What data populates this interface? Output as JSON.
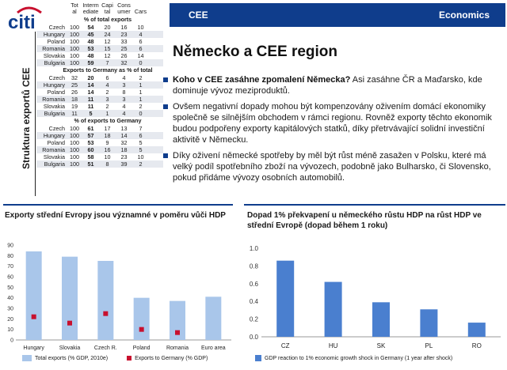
{
  "header": {
    "logo_text": "citi",
    "section": "CEE",
    "department": "Economics"
  },
  "sidebar_label": "Struktura exportů CEE",
  "table": {
    "columns": [
      "",
      "Tot al",
      "Interm ediate",
      "Capi tal",
      "Cons umer",
      "Cars"
    ],
    "col_line1": [
      "Tot",
      "Interm",
      "Capi",
      "Cons",
      ""
    ],
    "col_line2": [
      "al",
      "ediate",
      "tal",
      "umer",
      "Cars"
    ],
    "sections": [
      {
        "title": "% of total exports",
        "rows": [
          {
            "country": "Czech",
            "v": [
              "100",
              "54",
              "20",
              "16",
              "10"
            ]
          },
          {
            "country": "Hungary",
            "v": [
              "100",
              "45",
              "24",
              "23",
              "4"
            ]
          },
          {
            "country": "Poland",
            "v": [
              "100",
              "48",
              "12",
              "33",
              "6"
            ]
          },
          {
            "country": "Romania",
            "v": [
              "100",
              "53",
              "15",
              "25",
              "6"
            ]
          },
          {
            "country": "Slovakia",
            "v": [
              "100",
              "48",
              "12",
              "26",
              "14"
            ]
          },
          {
            "country": "Bulgaria",
            "v": [
              "100",
              "59",
              "7",
              "32",
              "0"
            ]
          }
        ]
      },
      {
        "title": "Exports to Germany as % of total",
        "rows": [
          {
            "country": "Czech",
            "v": [
              "32",
              "20",
              "6",
              "4",
              "2"
            ]
          },
          {
            "country": "Hungary",
            "v": [
              "25",
              "14",
              "4",
              "3",
              "1"
            ]
          },
          {
            "country": "Poland",
            "v": [
              "26",
              "14",
              "2",
              "8",
              "1"
            ]
          },
          {
            "country": "Romania",
            "v": [
              "18",
              "11",
              "3",
              "3",
              "1"
            ]
          },
          {
            "country": "Slovakia",
            "v": [
              "19",
              "11",
              "2",
              "4",
              "2"
            ]
          },
          {
            "country": "Bulgaria",
            "v": [
              "11",
              "5",
              "1",
              "4",
              "0"
            ]
          }
        ]
      },
      {
        "title": "% of exports to Germany",
        "rows": [
          {
            "country": "Czech",
            "v": [
              "100",
              "61",
              "17",
              "13",
              "7"
            ]
          },
          {
            "country": "Hungary",
            "v": [
              "100",
              "57",
              "18",
              "14",
              "6"
            ]
          },
          {
            "country": "Poland",
            "v": [
              "100",
              "53",
              "9",
              "32",
              "5"
            ]
          },
          {
            "country": "Romania",
            "v": [
              "100",
              "60",
              "16",
              "18",
              "5"
            ]
          },
          {
            "country": "Slovakia",
            "v": [
              "100",
              "58",
              "10",
              "23",
              "10"
            ]
          },
          {
            "country": "Bulgaria",
            "v": [
              "100",
              "51",
              "8",
              "39",
              "2"
            ]
          }
        ]
      }
    ]
  },
  "main": {
    "title": "Německo a CEE region",
    "bullets": [
      {
        "q": "Koho v CEE zasáhne zpomalení Německa?",
        "text": " Asi zasáhne ČR a Maďarsko, kde dominuje vývoz meziproduktů."
      },
      {
        "q": "",
        "text": "Ovšem negativní dopady mohou být kompenzovány oživením domácí ekonomiky společně se silnějším obchodem v rámci regionu. Rovněž exporty těchto ekonomik budou podpořeny exporty kapitálových statků, díky přetrvávající solidní investiční aktivitě v Německu."
      },
      {
        "q": "",
        "text": "Díky oživení německé spotřeby by měl být růst méně zasažen v Polsku, které má velký podíl spotřebního zboží na vývozech, podobně jako Bulharsko, či Slovensko, pokud přidáme vývozy osobních automobilů."
      }
    ]
  },
  "colors": {
    "brand_blue": "#0f3d8c",
    "bar_light": "#a9c6ea",
    "bar_mid": "#4a7fcf",
    "marker_red": "#c8102e"
  },
  "chart_data": [
    {
      "type": "bar",
      "title": "Exporty střední Evropy jsou významné v poměru vůči HDP",
      "categories": [
        "Hungary",
        "Slovakia",
        "Czech R.",
        "Poland",
        "Romania",
        "Euro area"
      ],
      "series": [
        {
          "name": "Total exports (% GDP, 2010e)",
          "values": [
            84,
            79,
            75,
            40,
            37,
            41
          ],
          "kind": "bar"
        },
        {
          "name": "Exports to Germany (% GDP)",
          "values": [
            22,
            16,
            25,
            10,
            7,
            null
          ],
          "kind": "marker"
        }
      ],
      "yticks": [
        "0",
        "10",
        "20",
        "30",
        "40",
        "50",
        "60",
        "70",
        "80",
        "90"
      ],
      "ylim": [
        0,
        90
      ]
    },
    {
      "type": "bar",
      "title": "Dopad 1% překvapení u německého růstu HDP na růst HDP ve střední Evropě (dopad během 1 roku)",
      "categories": [
        "CZ",
        "HU",
        "SK",
        "PL",
        "RO"
      ],
      "series": [
        {
          "name": "GDP reaction to 1% economic growth shock in Germany (1 year after shock)",
          "values": [
            0.86,
            0.62,
            0.39,
            0.31,
            0.16
          ]
        }
      ],
      "yticks": [
        "0.0",
        "0.2",
        "0.4",
        "0.6",
        "0.8",
        "1.0"
      ],
      "ylim": [
        0,
        1.0
      ]
    }
  ]
}
